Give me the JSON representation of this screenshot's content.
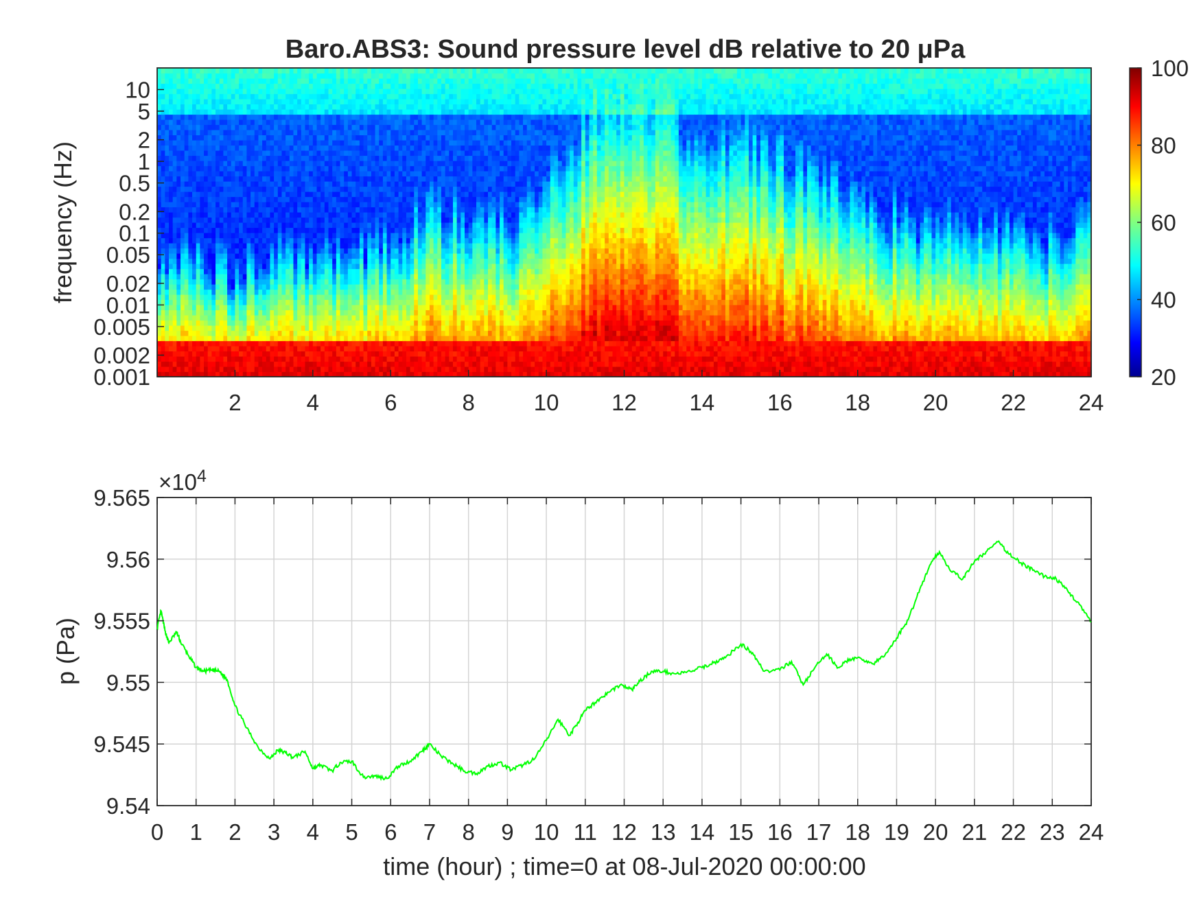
{
  "colors": {
    "line": "#00ff00",
    "axis": "#262626",
    "grid": "#d4d4d4",
    "background": "#ffffff"
  },
  "chart_data": [
    {
      "type": "heatmap",
      "title": "Baro.ABS3: Sound pressure level dB relative to 20 μPa",
      "ylabel": "frequency (Hz)",
      "xlabel": "",
      "yscale": "log",
      "xlim": [
        0,
        24
      ],
      "ylim": [
        0.001,
        20
      ],
      "x_ticks": [
        "2",
        "4",
        "6",
        "8",
        "10",
        "12",
        "14",
        "16",
        "18",
        "20",
        "22",
        "24"
      ],
      "y_ticks": [
        "10",
        "5",
        "2",
        "1",
        "0.5",
        "0.2",
        "0.1",
        "0.05",
        "0.02",
        "0.01",
        "0.005",
        "0.002",
        "0.001"
      ],
      "colormap": "jet",
      "colorbar": {
        "ticks": [
          "100",
          "80",
          "60",
          "40",
          "20"
        ],
        "range": [
          20,
          100
        ]
      },
      "time_profile": {
        "hours": [
          0,
          1,
          2,
          3,
          4,
          5,
          6,
          7,
          8,
          9,
          10,
          11,
          12,
          13,
          14,
          15,
          16,
          17,
          18,
          19,
          20,
          21,
          22,
          23,
          24
        ],
        "activity": [
          0.25,
          0.2,
          0.15,
          0.2,
          0.2,
          0.25,
          0.3,
          0.45,
          0.4,
          0.35,
          0.55,
          0.85,
          1.0,
          0.95,
          0.7,
          0.75,
          0.7,
          0.55,
          0.5,
          0.4,
          0.35,
          0.4,
          0.3,
          0.3,
          0.35
        ]
      },
      "levels_db": {
        "low_freq": 92,
        "mid_freq_quiet": 34,
        "high_freq": 48,
        "peak": 95
      }
    },
    {
      "type": "line",
      "title": "",
      "xlabel": "time (hour) ; time=0 at 08-Jul-2020 00:00:00",
      "ylabel": "p (Pa)",
      "exponent_label": "×10",
      "exponent_power": "4",
      "xlim": [
        0,
        24
      ],
      "ylim": [
        95400,
        95650
      ],
      "grid": true,
      "x_ticks": [
        "0",
        "1",
        "2",
        "3",
        "4",
        "5",
        "6",
        "7",
        "8",
        "9",
        "10",
        "11",
        "12",
        "13",
        "14",
        "15",
        "16",
        "17",
        "18",
        "19",
        "20",
        "21",
        "22",
        "23",
        "24"
      ],
      "y_ticks": [
        "9.565",
        "9.56",
        "9.555",
        "9.55",
        "9.545",
        "9.54"
      ],
      "series": [
        {
          "x": [
            0,
            0.1,
            0.2,
            0.3,
            0.5,
            0.6,
            0.8,
            1.0,
            1.2,
            1.4,
            1.6,
            1.8,
            2.0,
            2.3,
            2.6,
            2.9,
            3.1,
            3.3,
            3.5,
            3.8,
            4.0,
            4.2,
            4.5,
            4.7,
            5.0,
            5.3,
            5.6,
            5.9,
            6.2,
            6.5,
            6.8,
            7.0,
            7.3,
            7.6,
            7.9,
            8.2,
            8.5,
            8.8,
            9.1,
            9.4,
            9.7,
            10.0,
            10.3,
            10.6,
            10.8,
            11.0,
            11.3,
            11.6,
            11.9,
            12.2,
            12.4,
            12.7,
            13.0,
            13.3,
            13.6,
            14.0,
            14.3,
            14.6,
            15.0,
            15.3,
            15.6,
            16.0,
            16.3,
            16.6,
            16.9,
            17.2,
            17.5,
            17.8,
            18.1,
            18.4,
            18.7,
            19.0,
            19.3,
            19.6,
            19.9,
            20.1,
            20.4,
            20.7,
            21.0,
            21.3,
            21.6,
            21.9,
            22.2,
            22.5,
            22.8,
            23.1,
            23.4,
            23.7,
            24.0
          ],
          "y": [
            95544,
            95558,
            95542,
            95532,
            95541,
            95533,
            95522,
            95512,
            95509,
            95510,
            95509,
            95502,
            95481,
            95463,
            95447,
            95438,
            95445,
            95443,
            95439,
            95444,
            95430,
            95433,
            95428,
            95435,
            95436,
            95423,
            95424,
            95422,
            95432,
            95436,
            95444,
            95450,
            95440,
            95434,
            95428,
            95426,
            95432,
            95435,
            95429,
            95433,
            95438,
            95453,
            95470,
            95457,
            95467,
            95477,
            95485,
            95492,
            95498,
            95494,
            95501,
            95509,
            95509,
            95507,
            95508,
            95512,
            95516,
            95520,
            95531,
            95524,
            95509,
            95510,
            95517,
            95498,
            95512,
            95523,
            95512,
            95519,
            95519,
            95515,
            95522,
            95536,
            95551,
            95576,
            95598,
            95606,
            95590,
            95584,
            95598,
            95606,
            95614,
            95604,
            95597,
            95591,
            95586,
            95584,
            95574,
            95563,
            95549
          ]
        }
      ]
    }
  ]
}
